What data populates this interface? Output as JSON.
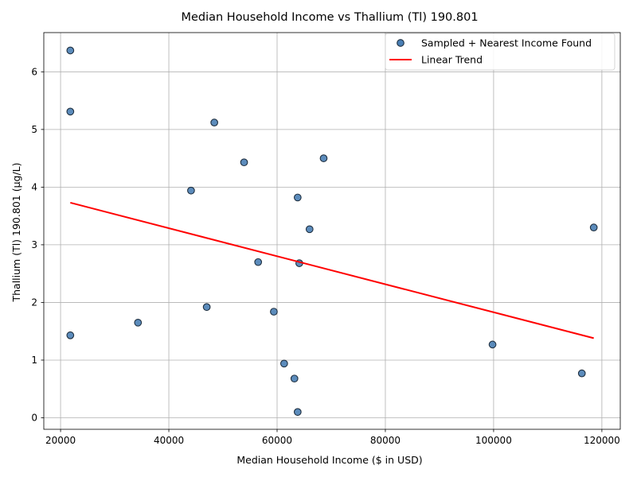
{
  "chart_data": {
    "type": "scatter",
    "title": "Median Household Income vs Thallium (Tl) 190.801",
    "xlabel": "Median Household Income ($ in USD)",
    "ylabel": "Thallium (Tl) 190.801 (µg/L)",
    "xlim": [
      16900,
      123400
    ],
    "ylim": [
      -0.2,
      6.68
    ],
    "xticks": [
      20000,
      40000,
      60000,
      80000,
      100000,
      120000
    ],
    "yticks": [
      0,
      1,
      2,
      3,
      4,
      5,
      6
    ],
    "grid": true,
    "legend_position": "top-right",
    "series": [
      {
        "name": "Sampled + Nearest Income Found",
        "kind": "scatter",
        "color": "#4a7fb5",
        "edgecolor": "#1f2f3f",
        "points": [
          {
            "x": 21800,
            "y": 6.37
          },
          {
            "x": 21800,
            "y": 5.31
          },
          {
            "x": 21800,
            "y": 1.43
          },
          {
            "x": 34300,
            "y": 1.65
          },
          {
            "x": 44100,
            "y": 3.94
          },
          {
            "x": 47000,
            "y": 1.92
          },
          {
            "x": 48400,
            "y": 5.12
          },
          {
            "x": 53900,
            "y": 4.43
          },
          {
            "x": 56500,
            "y": 2.7
          },
          {
            "x": 59400,
            "y": 1.84
          },
          {
            "x": 61300,
            "y": 0.94
          },
          {
            "x": 63200,
            "y": 0.68
          },
          {
            "x": 63800,
            "y": 0.1
          },
          {
            "x": 63800,
            "y": 3.82
          },
          {
            "x": 64100,
            "y": 2.68
          },
          {
            "x": 66000,
            "y": 3.27
          },
          {
            "x": 68600,
            "y": 4.5
          },
          {
            "x": 99800,
            "y": 1.27
          },
          {
            "x": 116300,
            "y": 0.77
          },
          {
            "x": 118500,
            "y": 3.3
          }
        ]
      },
      {
        "name": "Linear Trend",
        "kind": "line",
        "color": "#ff0000",
        "points": [
          {
            "x": 21800,
            "y": 3.73
          },
          {
            "x": 118500,
            "y": 1.38
          }
        ]
      }
    ]
  }
}
